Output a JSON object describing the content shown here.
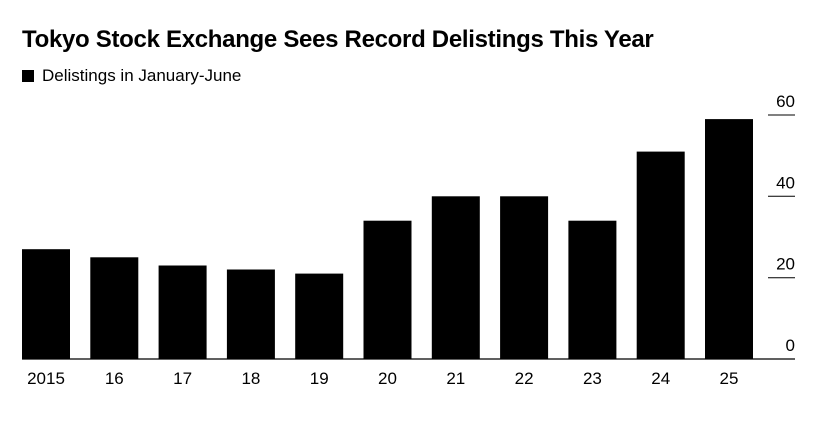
{
  "chart_data": {
    "type": "bar",
    "title": "Tokyo Stock Exchange Sees Record Delistings This Year",
    "legend": {
      "position": "top-left"
    },
    "series": [
      {
        "name": "Delistings in January-June",
        "color": "#000000",
        "values": [
          27,
          25,
          23,
          22,
          21,
          34,
          40,
          40,
          34,
          51,
          59
        ]
      }
    ],
    "categories": [
      "2015",
      "16",
      "17",
      "18",
      "19",
      "20",
      "21",
      "22",
      "23",
      "24",
      "25"
    ],
    "ylim": [
      0,
      60
    ],
    "yticks": [
      0,
      20,
      40,
      60
    ],
    "y_axis_side": "right",
    "grid": false,
    "xlabel": "",
    "ylabel": ""
  }
}
